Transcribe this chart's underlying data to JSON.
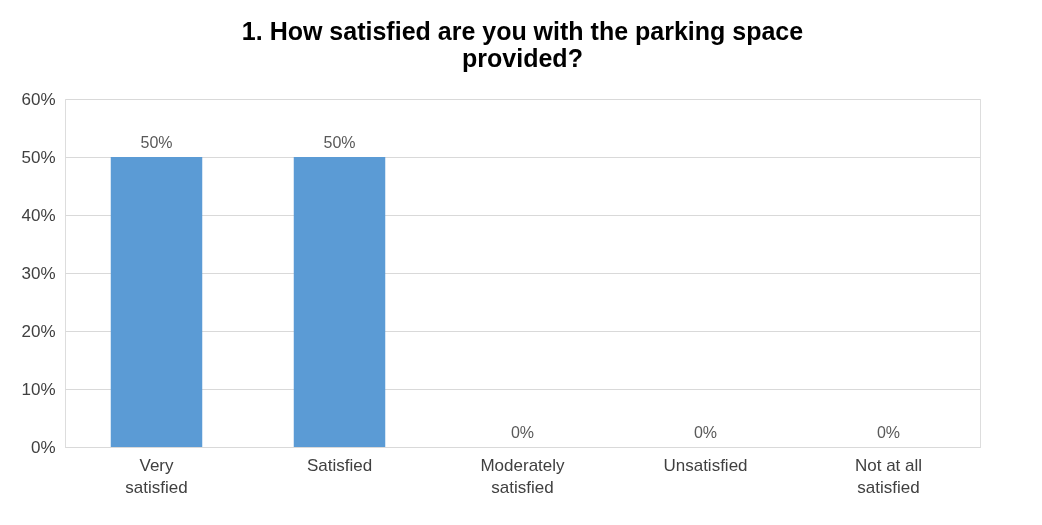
{
  "chart_data": {
    "type": "bar",
    "title": "1.  How satisfied are you with the parking space provided?",
    "categories": [
      "Very satisfied",
      "Satisfied",
      "Moderately satisfied",
      "Unsatisfied",
      "Not at all satisfied"
    ],
    "values": [
      50,
      50,
      0,
      0,
      0
    ],
    "value_labels": [
      "50%",
      "50%",
      "0%",
      "0%",
      "0%"
    ],
    "color": "#5b9bd5",
    "ylim": [
      0,
      60
    ],
    "yticks": [
      {
        "value": 0,
        "label": "0%"
      },
      {
        "value": 10,
        "label": "10%"
      },
      {
        "value": 20,
        "label": "20%"
      },
      {
        "value": 30,
        "label": "30%"
      },
      {
        "value": 40,
        "label": "40%"
      },
      {
        "value": 50,
        "label": "50%"
      },
      {
        "value": 60,
        "label": "60%"
      }
    ],
    "grid": "y"
  }
}
